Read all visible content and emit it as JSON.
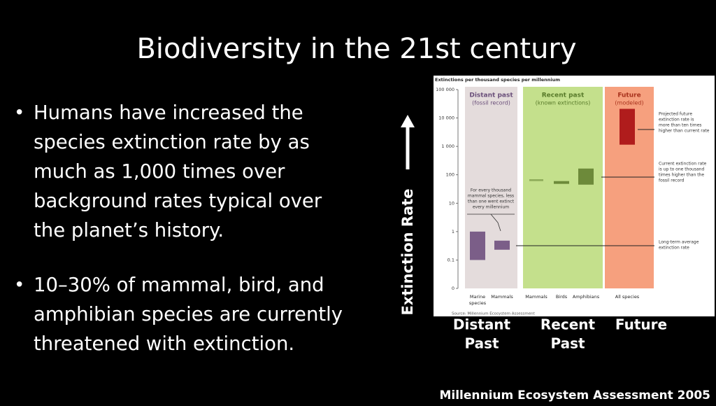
{
  "title": "Biodiversity in the 21st century",
  "bullets": [
    [
      "Humans have increased the",
      "species extinction rate by as",
      "much as 1,000 times over",
      "background rates typical over",
      "the planet’s history."
    ],
    [
      "10–30% of mammal, bird, and",
      "amphibian species are currently",
      "threatened with extinction."
    ]
  ],
  "axis_label": "Extinction Rate",
  "period_labels": [
    [
      "Distant",
      "Past"
    ],
    [
      "Recent",
      "Past"
    ],
    [
      "Future"
    ]
  ],
  "credit": "Millennium Ecosystem Assessment 2005",
  "chart_data": {
    "type": "floating-bar",
    "title": "Extinctions per thousand species per millennium",
    "log_scale": true,
    "ylim": [
      0.01,
      100000
    ],
    "yticks": [
      {
        "value": 0.01,
        "label": "0"
      },
      0.1,
      1,
      10,
      100,
      {
        "value": 1000,
        "label": "1 000"
      },
      {
        "value": 10000,
        "label": "10 000"
      },
      {
        "value": 100000,
        "label": "100 000"
      }
    ],
    "periods": [
      {
        "name": "Distant past",
        "note": "(fossil record)",
        "color": "#e4dcdc",
        "text_color": "#6a4f7a"
      },
      {
        "name": "Recent past",
        "note": "(known extinctions)",
        "color": "#c4e08c",
        "text_color": "#587a2a"
      },
      {
        "name": "Future",
        "note": "(modeled)",
        "color": "#f6a07e",
        "text_color": "#a8321c"
      }
    ],
    "categories": [
      [
        "Marine",
        "species"
      ],
      [
        "Mammals"
      ],
      [
        "Mammals"
      ],
      [
        "Birds"
      ],
      [
        "Amphibians"
      ],
      [
        "All species"
      ]
    ],
    "low": [
      0.1,
      0.23,
      60,
      48,
      45,
      1150
    ],
    "high": [
      1,
      0.48,
      70,
      60,
      166,
      21000
    ],
    "colors": [
      "#7b5e88",
      "#7b5e88",
      "#6d8a3a",
      "#6d8a3a",
      "#6d8a3a",
      "#b01c1c"
    ],
    "annotations": [
      [
        "For every thousand",
        "mammal species, less",
        "than one went extinct",
        "every millennium"
      ],
      [
        "Projected future",
        "extinction rate is",
        "more than ten times",
        "higher than current rate"
      ],
      [
        "Current extinction rate",
        "is up to one thousand",
        "times higher than the",
        "fossil record"
      ],
      [
        "Long-term average",
        "extinction rate"
      ]
    ],
    "source": "Source: Millennium Ecosystem Assessment"
  }
}
